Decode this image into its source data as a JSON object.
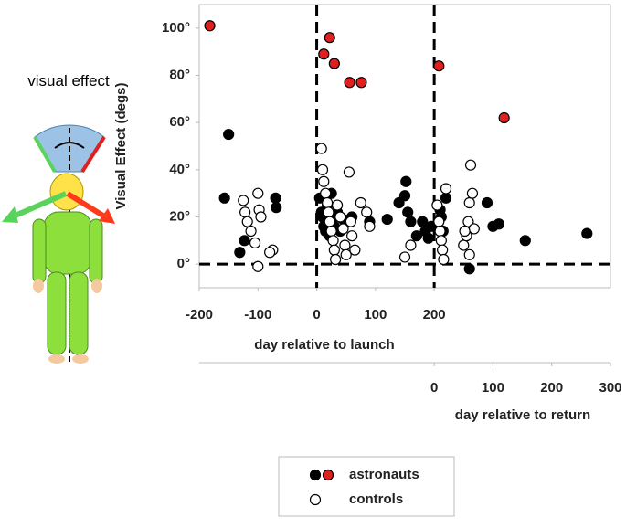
{
  "chart_data": {
    "type": "scatter",
    "ylabel": "Visual Effect (degs)",
    "xlabel": "day relative to launch",
    "x2label": "day relative to return",
    "illustration_label": "visual effect",
    "xlim": [
      -200,
      500
    ],
    "xticks": [
      -200,
      -100,
      0,
      100,
      200
    ],
    "x2lim": [
      -400,
      300
    ],
    "x2ticks": [
      0,
      100,
      200,
      300
    ],
    "ylim": [
      -10,
      110
    ],
    "yticks": [
      {
        "value": 0,
        "label": "0°"
      },
      {
        "value": 20,
        "label": "20°"
      },
      {
        "value": 40,
        "label": "40°"
      },
      {
        "value": 60,
        "label": "60°"
      },
      {
        "value": 80,
        "label": "80°"
      },
      {
        "value": 100,
        "label": "100°"
      }
    ],
    "reference_lines": {
      "x": [
        0,
        200
      ],
      "y": [
        0
      ]
    },
    "series": [
      {
        "name": "astronauts",
        "color": "#000000",
        "x": [
          -150,
          -157,
          -123,
          -131,
          -70,
          -69,
          5,
          8,
          10,
          12,
          15,
          18,
          20,
          22,
          25,
          28,
          30,
          35,
          40,
          45,
          60,
          90,
          120,
          140,
          150,
          152,
          155,
          160,
          170,
          180,
          185,
          190,
          195,
          210,
          212,
          215,
          220,
          260,
          290,
          300,
          310,
          355,
          460
        ],
        "values": [
          55,
          28,
          10,
          5,
          28,
          24,
          28,
          22,
          20,
          16,
          14,
          25,
          18,
          12,
          30,
          20,
          16,
          22,
          14,
          19,
          20,
          18,
          19,
          26,
          29,
          35,
          22,
          18,
          12,
          18,
          14,
          11,
          16,
          23,
          20,
          14,
          28,
          -2,
          26,
          16,
          17,
          10,
          13
        ]
      },
      {
        "color": "#e02020",
        "x": [
          -182,
          22,
          12,
          30,
          56,
          76,
          208,
          319
        ],
        "values": [
          101,
          96,
          89,
          85,
          77,
          77,
          84,
          62
        ]
      },
      {
        "name": "controls",
        "color": "#ffffff",
        "x": [
          -125,
          -122,
          -118,
          -112,
          -105,
          -100,
          -98,
          -95,
          -100,
          -75,
          -80,
          8,
          10,
          12,
          15,
          18,
          20,
          22,
          25,
          28,
          30,
          32,
          35,
          40,
          45,
          48,
          50,
          55,
          58,
          60,
          65,
          75,
          85,
          90,
          150,
          160,
          205,
          208,
          210,
          212,
          214,
          216,
          220,
          250,
          255,
          258,
          260,
          262,
          265,
          268,
          260,
          252
        ],
        "values": [
          27,
          22,
          18,
          14,
          9,
          30,
          23,
          20,
          -1,
          6,
          5,
          49,
          40,
          35,
          30,
          26,
          22,
          18,
          14,
          10,
          6,
          2,
          25,
          20,
          15,
          8,
          4,
          39,
          18,
          12,
          6,
          26,
          22,
          16,
          3,
          8,
          25,
          18,
          14,
          10,
          6,
          2,
          32,
          8,
          12,
          18,
          26,
          42,
          30,
          15,
          4,
          14
        ]
      }
    ]
  }
}
